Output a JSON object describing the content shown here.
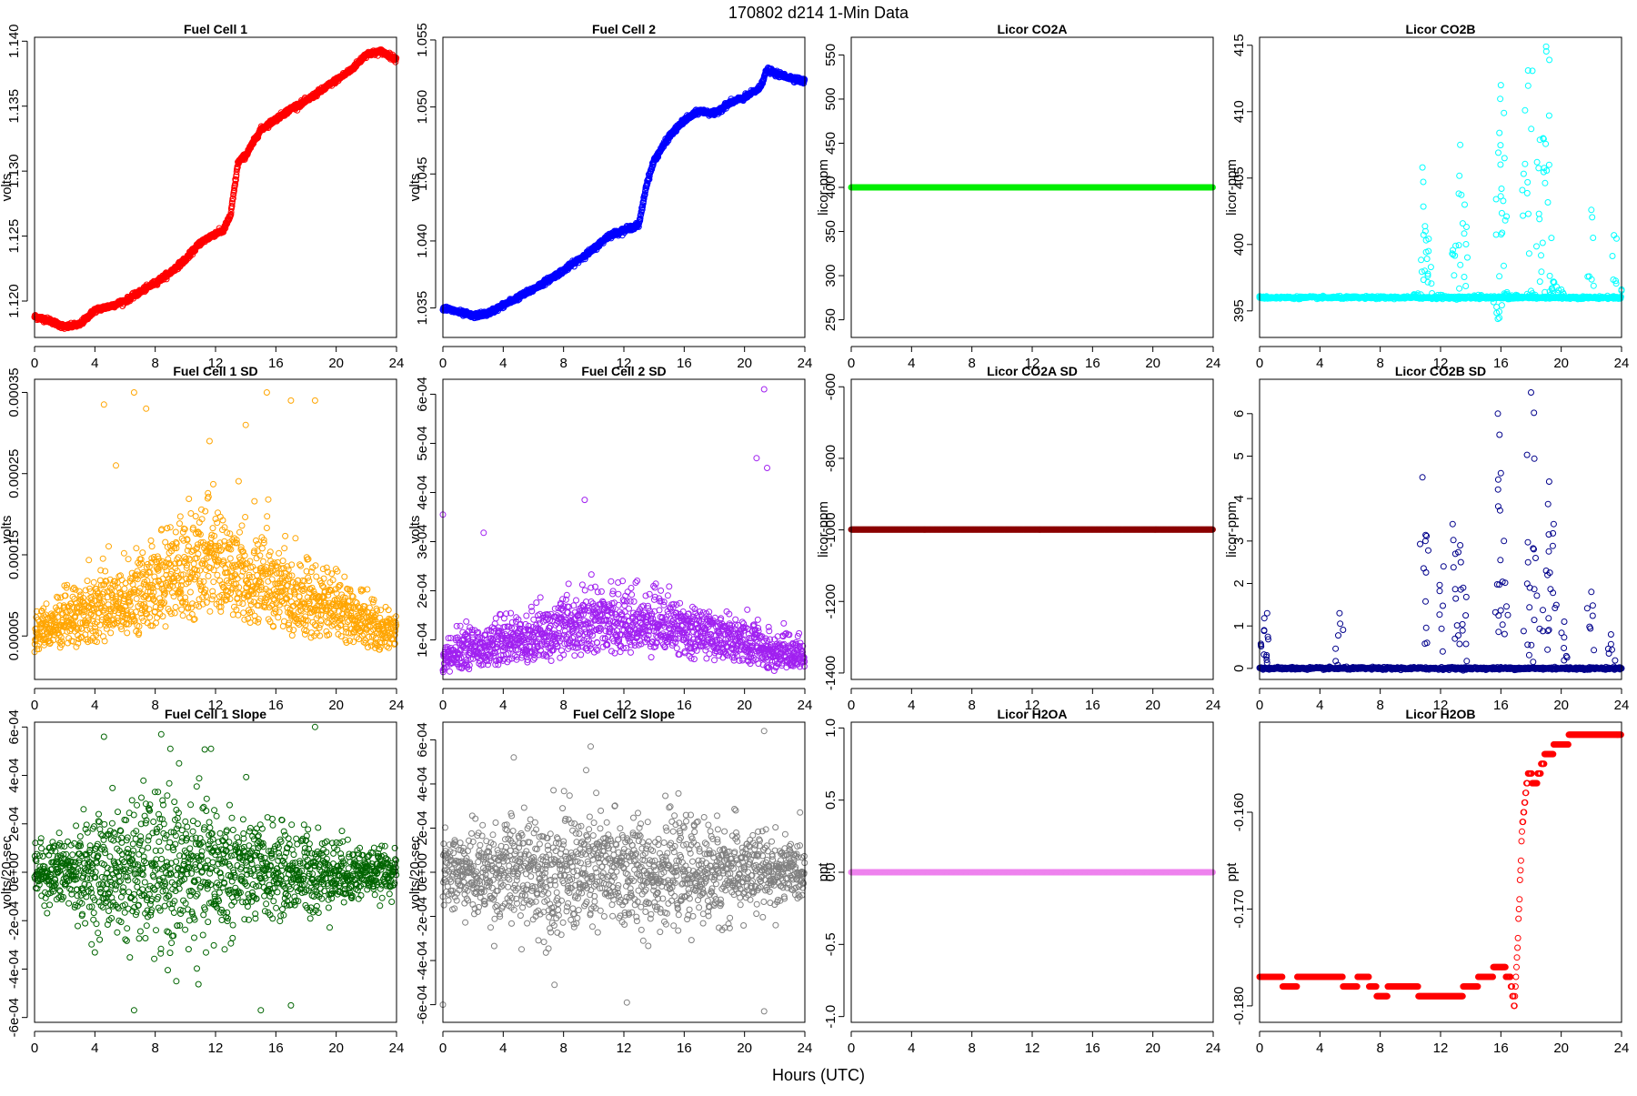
{
  "figure": {
    "title": "170802    d214    1-Min Data",
    "xlabel": "Hours (UTC)"
  },
  "chart_data": [
    {
      "type": "scatter",
      "title": "Fuel Cell 1",
      "ylabel": "volts",
      "color": "#ff0000",
      "xlim": [
        0,
        24
      ],
      "ylim": [
        1.1172,
        1.1403
      ],
      "x_ticks": [
        0,
        4,
        8,
        12,
        16,
        20,
        24
      ],
      "y_ticks": [
        1.12,
        1.125,
        1.13,
        1.135,
        1.14
      ],
      "y_tick_labels": [
        "1.120",
        "1.125",
        "1.130",
        "1.135",
        "1.140"
      ],
      "x": [
        0,
        1,
        2,
        3,
        4,
        5,
        6,
        7,
        8,
        9,
        10,
        11,
        12,
        12.5,
        13,
        13.5,
        14,
        15,
        16,
        17,
        18,
        19,
        20,
        21,
        22,
        23,
        24
      ],
      "y": [
        1.1188,
        1.1185,
        1.118,
        1.1182,
        1.1193,
        1.1196,
        1.12,
        1.1207,
        1.1214,
        1.1222,
        1.1232,
        1.1245,
        1.1252,
        1.1254,
        1.1266,
        1.1307,
        1.1312,
        1.1332,
        1.134,
        1.1348,
        1.1354,
        1.1362,
        1.137,
        1.1378,
        1.139,
        1.1392,
        1.1386
      ],
      "point_style": "dense_line"
    },
    {
      "type": "scatter",
      "title": "Fuel Cell 2",
      "ylabel": "volts",
      "color": "#0000ff",
      "xlim": [
        0,
        24
      ],
      "ylim": [
        1.0328,
        1.0552
      ],
      "x_ticks": [
        0,
        4,
        8,
        12,
        16,
        20,
        24
      ],
      "y_ticks": [
        1.035,
        1.04,
        1.045,
        1.05,
        1.055
      ],
      "y_tick_labels": [
        "1.035",
        "1.040",
        "1.045",
        "1.050",
        "1.055"
      ],
      "x": [
        0,
        1,
        2,
        3,
        4,
        5,
        6,
        7,
        8,
        9,
        10,
        11,
        12,
        13,
        13.5,
        14,
        15,
        16,
        17,
        18,
        19,
        20,
        21,
        21.5,
        22,
        23,
        24
      ],
      "y": [
        1.035,
        1.0347,
        1.0344,
        1.0346,
        1.0352,
        1.0358,
        1.0364,
        1.0371,
        1.0378,
        1.0386,
        1.0394,
        1.0404,
        1.0408,
        1.0412,
        1.0442,
        1.046,
        1.0478,
        1.049,
        1.0497,
        1.0495,
        1.0503,
        1.0507,
        1.0514,
        1.0528,
        1.0525,
        1.0522,
        1.0519
      ],
      "point_style": "dense_line"
    },
    {
      "type": "scatter",
      "title": "Licor CO2A",
      "ylabel": "licor-ppm",
      "color": "#00ee00",
      "xlim": [
        0,
        24
      ],
      "ylim": [
        230,
        570
      ],
      "x_ticks": [
        0,
        4,
        8,
        12,
        16,
        20,
        24
      ],
      "y_ticks": [
        250,
        300,
        350,
        400,
        450,
        500,
        550
      ],
      "y_tick_labels": [
        "250",
        "300",
        "350",
        "400",
        "450",
        "500",
        "550"
      ],
      "x": [
        0,
        24
      ],
      "y": [
        400,
        400
      ],
      "point_style": "constant"
    },
    {
      "type": "scatter",
      "title": "Licor CO2B",
      "ylabel": "licor-ppm",
      "color": "#00ffff",
      "xlim": [
        0,
        24
      ],
      "ylim": [
        393.0,
        415.6
      ],
      "x_ticks": [
        0,
        4,
        8,
        12,
        16,
        20,
        24
      ],
      "y_ticks": [
        395,
        400,
        405,
        410,
        415
      ],
      "y_tick_labels": [
        "395",
        "400",
        "405",
        "410",
        "415"
      ],
      "x": [
        0,
        4,
        8,
        10.5,
        10.8,
        11.0,
        11.2,
        12,
        13,
        13.3,
        13.6,
        14.5,
        15.8,
        15.9,
        16.0,
        16.2,
        16.4,
        17,
        17.6,
        17.8,
        18,
        18.4,
        18.8,
        19.0,
        19.2,
        19.5,
        20,
        22,
        23.5,
        24
      ],
      "y": [
        396.1,
        396.0,
        396.0,
        396.3,
        405.8,
        401.0,
        399.5,
        396.2,
        399.9,
        407.5,
        403.0,
        396.2,
        394.4,
        408.4,
        412.0,
        409.9,
        396.4,
        396.2,
        410.1,
        413.1,
        396.5,
        406.2,
        408.0,
        414.9,
        406.0,
        397.2,
        396.6,
        402.6,
        400.7,
        396.6
      ],
      "baseline": 396.0,
      "point_style": "spikes"
    },
    {
      "type": "scatter",
      "title": "Fuel Cell 1 SD",
      "ylabel": "volts",
      "color": "#ffa500",
      "xlim": [
        0,
        24
      ],
      "ylim": [
        -3.5e-06,
        0.0003662
      ],
      "x_ticks": [
        0,
        4,
        8,
        12,
        16,
        20,
        24
      ],
      "y_ticks": [
        5e-05,
        0.00015,
        0.00025,
        0.00035
      ],
      "y_tick_labels": [
        "0.00005",
        "0.00015",
        "0.00025",
        "0.00035"
      ],
      "x": [
        0,
        2,
        4,
        6,
        8,
        10,
        12,
        14,
        16,
        18,
        20,
        22,
        24
      ],
      "y": [
        6e-05,
        7e-05,
        9e-05,
        0.0001,
        0.00012,
        0.00014,
        0.00016,
        0.00013,
        0.00012,
        0.0001,
        9e-05,
        7e-05,
        6e-05
      ],
      "trend": "mean_curve",
      "outliers": [
        [
          4.6,
          0.000335
        ],
        [
          5.4,
          0.00026
        ],
        [
          6.6,
          0.00035
        ],
        [
          7.4,
          0.00033
        ],
        [
          9.4,
          0.00037
        ],
        [
          11.2,
          0.00037
        ],
        [
          11.6,
          0.00029
        ],
        [
          14.0,
          0.00031
        ],
        [
          15.4,
          0.00035
        ],
        [
          17.0,
          0.00034
        ],
        [
          18.6,
          0.00034
        ]
      ],
      "point_style": "noisy"
    },
    {
      "type": "scatter",
      "title": "Fuel Cell 2 SD",
      "ylabel": "volts",
      "color": "#a020f0",
      "xlim": [
        0,
        24
      ],
      "ylim": [
        1.96e-05,
        0.0006304
      ],
      "x_ticks": [
        0,
        4,
        8,
        12,
        16,
        20,
        24
      ],
      "y_ticks": [
        0.0001,
        0.0002,
        0.0003,
        0.0004,
        0.0005,
        0.0006
      ],
      "y_tick_labels": [
        "1e-04",
        "2e-04",
        "3e-04",
        "4e-04",
        "5e-04",
        "6e-04"
      ],
      "x": [
        0,
        2,
        4,
        6,
        8,
        10,
        12,
        14,
        16,
        18,
        20,
        22,
        24
      ],
      "y": [
        7e-05,
        9e-05,
        0.0001,
        0.00011,
        0.00013,
        0.00014,
        0.00015,
        0.00014,
        0.00013,
        0.00011,
        0.0001,
        8e-05,
        7e-05
      ],
      "trend": "mean_curve",
      "outliers": [
        [
          0,
          0.000355
        ],
        [
          2.7,
          0.000318
        ],
        [
          9.4,
          0.000385
        ],
        [
          20.8,
          0.00047
        ],
        [
          21.3,
          0.00061
        ],
        [
          21.5,
          0.00045
        ]
      ],
      "point_style": "noisy"
    },
    {
      "type": "scatter",
      "title": "Licor CO2A SD",
      "ylabel": "licor-ppm",
      "color": "#8b0000",
      "xlim": [
        0,
        24
      ],
      "ylim": [
        -1418,
        -579
      ],
      "x_ticks": [
        0,
        4,
        8,
        12,
        16,
        20,
        24
      ],
      "y_ticks": [
        -1400,
        -1200,
        -1000,
        -800,
        -600
      ],
      "y_tick_labels": [
        "-1400",
        "-1200",
        "-1000",
        "-800",
        "-600"
      ],
      "x": [
        0,
        24
      ],
      "y": [
        -999,
        -999
      ],
      "point_style": "constant"
    },
    {
      "type": "scatter",
      "title": "Licor CO2B SD",
      "ylabel": "licor-ppm",
      "color": "#00008b",
      "xlim": [
        0,
        24
      ],
      "ylim": [
        -0.26,
        6.81
      ],
      "x_ticks": [
        0,
        4,
        8,
        12,
        16,
        20,
        24
      ],
      "y_ticks": [
        0,
        1,
        2,
        3,
        4,
        5,
        6
      ],
      "y_tick_labels": [
        "0",
        "1",
        "2",
        "3",
        "4",
        "5",
        "6"
      ],
      "x": [
        0.3,
        0.5,
        5.3,
        10.8,
        11.0,
        12.2,
        12.8,
        13.3,
        13.5,
        15.8,
        16.0,
        16.2,
        17.8,
        18.0,
        18.3,
        19.0,
        19.2,
        19.5,
        20.2,
        22.0,
        23.3,
        24
      ],
      "y": [
        0.9,
        1.3,
        1.3,
        4.5,
        3.0,
        2.4,
        3.4,
        2.9,
        1.9,
        6.0,
        4.6,
        3.0,
        2.5,
        6.5,
        2.6,
        2.3,
        4.4,
        3.4,
        1.1,
        1.8,
        0.8,
        0.0
      ],
      "baseline": 0.0,
      "point_style": "spikes"
    },
    {
      "type": "scatter",
      "title": "Fuel Cell 1 Slope",
      "ylabel": "volts/20-sec",
      "color": "#006400",
      "xlim": [
        0,
        24
      ],
      "ylim": [
        -0.00062,
        0.00062
      ],
      "x_ticks": [
        0,
        4,
        8,
        12,
        16,
        20,
        24
      ],
      "y_ticks": [
        -0.0006,
        -0.0004,
        -0.0002,
        0,
        0.0002,
        0.0004,
        0.0006
      ],
      "y_tick_labels": [
        "-6e-04",
        "-4e-04",
        "-2e-04",
        "0e+00",
        "2e-04",
        "4e-04",
        "6e-04"
      ],
      "x": [
        0,
        2,
        4,
        6,
        8,
        10,
        12,
        14,
        16,
        18,
        20,
        22,
        24
      ],
      "y": [
        0,
        0,
        0,
        0,
        0,
        0,
        0,
        0,
        0,
        0,
        0,
        0,
        0
      ],
      "spread": [
        5e-05,
        8e-05,
        0.00011,
        0.00014,
        0.00016,
        0.00016,
        0.00015,
        0.00011,
        9e-05,
        9e-05,
        7e-05,
        5e-05,
        4e-05
      ],
      "outliers": [
        [
          4.6,
          0.00056
        ],
        [
          9.0,
          0.00051
        ],
        [
          11.7,
          0.00051
        ],
        [
          18.6,
          0.0006
        ],
        [
          6.6,
          -0.00057
        ],
        [
          9.4,
          -0.00045
        ],
        [
          15.0,
          -0.00057
        ],
        [
          17.0,
          -0.00055
        ]
      ],
      "point_style": "noise"
    },
    {
      "type": "scatter",
      "title": "Fuel Cell 2 Slope",
      "ylabel": "volts/20-sec",
      "color": "#808080",
      "xlim": [
        0,
        24
      ],
      "ylim": [
        -0.00068,
        0.00068
      ],
      "x_ticks": [
        0,
        4,
        8,
        12,
        16,
        20,
        24
      ],
      "y_ticks": [
        -0.0006,
        -0.0004,
        -0.0002,
        0,
        0.0002,
        0.0004,
        0.0006
      ],
      "y_tick_labels": [
        "-6e-04",
        "-4e-04",
        "-2e-04",
        "0e+00",
        "2e-04",
        "4e-04",
        "6e-04"
      ],
      "x": [
        0,
        2,
        4,
        6,
        8,
        10,
        12,
        14,
        16,
        18,
        20,
        22,
        24
      ],
      "y": [
        0,
        0,
        0,
        0,
        0,
        0,
        0,
        0,
        0,
        0,
        0,
        0,
        0
      ],
      "spread": [
        8e-05,
        0.0001,
        0.00011,
        0.00013,
        0.00014,
        0.00014,
        0.00013,
        0.00012,
        0.00011,
        0.00011,
        0.0001,
        8e-05,
        6e-05
      ],
      "outliers": [
        [
          4.7,
          0.00052
        ],
        [
          9.8,
          0.00057
        ],
        [
          21.3,
          0.00064
        ],
        [
          0,
          -0.0006
        ],
        [
          7.4,
          -0.00051
        ],
        [
          12.2,
          -0.00059
        ],
        [
          21.3,
          -0.00063
        ]
      ],
      "point_style": "noise"
    },
    {
      "type": "scatter",
      "title": "Licor H2OA",
      "ylabel": "ppt",
      "color": "#ee82ee",
      "xlim": [
        0,
        24
      ],
      "ylim": [
        -1.04,
        1.04
      ],
      "x_ticks": [
        0,
        4,
        8,
        12,
        16,
        20,
        24
      ],
      "y_ticks": [
        -1,
        -0.5,
        0,
        0.5,
        1
      ],
      "y_tick_labels": [
        "-1.0",
        "-0.5",
        "0.0",
        "0.5",
        "1.0"
      ],
      "x": [
        0,
        24
      ],
      "y": [
        0,
        0
      ],
      "point_style": "constant"
    },
    {
      "type": "scatter",
      "title": "Licor H2OB",
      "ylabel": "ppt",
      "color": "#ff0000",
      "xlim": [
        0,
        24
      ],
      "ylim": [
        -0.1817,
        -0.1507
      ],
      "x_ticks": [
        0,
        4,
        8,
        12,
        16,
        20,
        24
      ],
      "y_ticks": [
        -0.18,
        -0.17,
        -0.16
      ],
      "y_tick_labels": [
        "-0.180",
        "-0.170",
        "-0.160"
      ],
      "x": [
        0,
        1,
        2,
        3,
        4,
        5,
        6,
        7,
        8,
        9,
        10,
        11,
        12,
        13,
        14,
        15,
        16,
        16.6,
        16.9,
        17.1,
        17.4,
        17.8,
        18.3,
        19,
        20,
        21,
        22,
        24
      ],
      "y": [
        -0.177,
        -0.177,
        -0.178,
        -0.177,
        -0.177,
        -0.177,
        -0.178,
        -0.177,
        -0.179,
        -0.178,
        -0.178,
        -0.179,
        -0.179,
        -0.179,
        -0.178,
        -0.177,
        -0.176,
        -0.177,
        -0.18,
        -0.174,
        -0.162,
        -0.156,
        -0.157,
        -0.154,
        -0.153,
        -0.152,
        -0.152,
        -0.152
      ],
      "point_style": "step"
    }
  ]
}
